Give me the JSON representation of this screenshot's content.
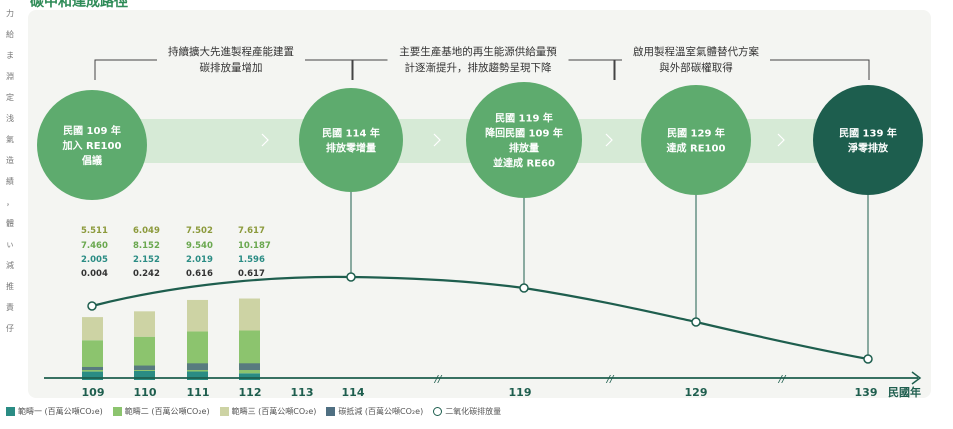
{
  "title": "碳中和達成路徑",
  "left_strip": [
    "力",
    "給",
    "ま",
    "淵",
    "定",
    "浅",
    "氣",
    "造",
    "績",
    "，",
    "體",
    "ぃ",
    "減",
    "推",
    "責",
    "仔"
  ],
  "captions": [
    {
      "lines": [
        "持續擴大先進製程產能建置",
        "碳排放量增加"
      ]
    },
    {
      "lines": [
        "主要生產基地的再生能源供給量預",
        "計逐漸提升，排放趨勢呈現下降"
      ]
    },
    {
      "lines": [
        "啟用製程溫室氣體替代方案",
        "與外部碳權取得"
      ]
    }
  ],
  "milestones": [
    {
      "lines": [
        "民國 109 年",
        "加入 RE100",
        "倡議"
      ]
    },
    {
      "lines": [
        "民國 114 年",
        "排放零增量"
      ]
    },
    {
      "lines": [
        "民國 119 年",
        "降回民國 109 年",
        "排放量",
        "並達成 RE60"
      ]
    },
    {
      "lines": [
        "民國 129 年",
        "達成 RE100"
      ]
    },
    {
      "lines": [
        "民國 139 年",
        "淨零排放"
      ]
    }
  ],
  "axis": {
    "labels": [
      "109",
      "110",
      "111",
      "112",
      "113",
      "114",
      "119",
      "129",
      "139"
    ],
    "unit": "民國年"
  },
  "colors": {
    "scope1": "#2a8c84",
    "scope2": "#8cc46e",
    "scope3": "#cdd3a4",
    "offset": "#4f6f82",
    "line": "#1e5e4e",
    "circle": "#5eab6e",
    "circle_final": "#1d5e4e",
    "band": "#d6ead6",
    "title": "#2e8b57"
  },
  "chart_data": {
    "type": "bar",
    "categories": [
      "109",
      "110",
      "111",
      "112"
    ],
    "series": [
      {
        "name": "範疇一 (百萬公噸CO₂e)",
        "values": [
          2.005,
          2.152,
          2.019,
          1.596
        ]
      },
      {
        "name": "範疇二 (百萬公噸CO₂e)",
        "values": [
          7.46,
          8.152,
          9.54,
          10.187
        ]
      },
      {
        "name": "範疇三 (百萬公噸CO₂e)",
        "values": [
          5.511,
          6.049,
          7.502,
          7.617
        ]
      },
      {
        "name": "碳抵減 (百萬公噸CO₂e)",
        "values": [
          0.004,
          0.242,
          0.616,
          0.617
        ]
      }
    ],
    "label_rows": [
      {
        "series": "範疇三 (百萬公噸CO₂e)",
        "color": "#8c9a3c",
        "labels": [
          "5.511",
          "6.049",
          "7.502",
          "7.617"
        ]
      },
      {
        "series": "範疇二 (百萬公噸CO₂e)",
        "color": "#6aa84f",
        "labels": [
          "7.460",
          "8.152",
          "9.540",
          "10.187"
        ]
      },
      {
        "series": "範疇一 (百萬公噸CO₂e)",
        "color": "#2a8c84",
        "labels": [
          "2.005",
          "2.152",
          "2.019",
          "1.596"
        ]
      },
      {
        "series": "碳抵減 (百萬公噸CO₂e)",
        "color": "#333333",
        "labels": [
          "0.004",
          "0.242",
          "0.616",
          "0.617"
        ]
      }
    ],
    "line_series": {
      "name": "二氧化碳排放量",
      "x": [
        "109",
        "114",
        "119",
        "129",
        "139"
      ],
      "trend": [
        "increase",
        "peak",
        "decrease",
        "decrease",
        "net-zero"
      ]
    },
    "legend": [
      {
        "label": "範疇一 (百萬公噸CO₂e)",
        "kind": "square",
        "color": "#2a8c84"
      },
      {
        "label": "範疇二 (百萬公噸CO₂e)",
        "kind": "square",
        "color": "#8cc46e"
      },
      {
        "label": "範疇三 (百萬公噸CO₂e)",
        "kind": "square",
        "color": "#cdd3a4"
      },
      {
        "label": "碳抵減 (百萬公噸CO₂e)",
        "kind": "square",
        "color": "#4f6f82"
      },
      {
        "label": "二氧化碳排放量",
        "kind": "circle",
        "color": "#1e5e4e"
      }
    ]
  }
}
